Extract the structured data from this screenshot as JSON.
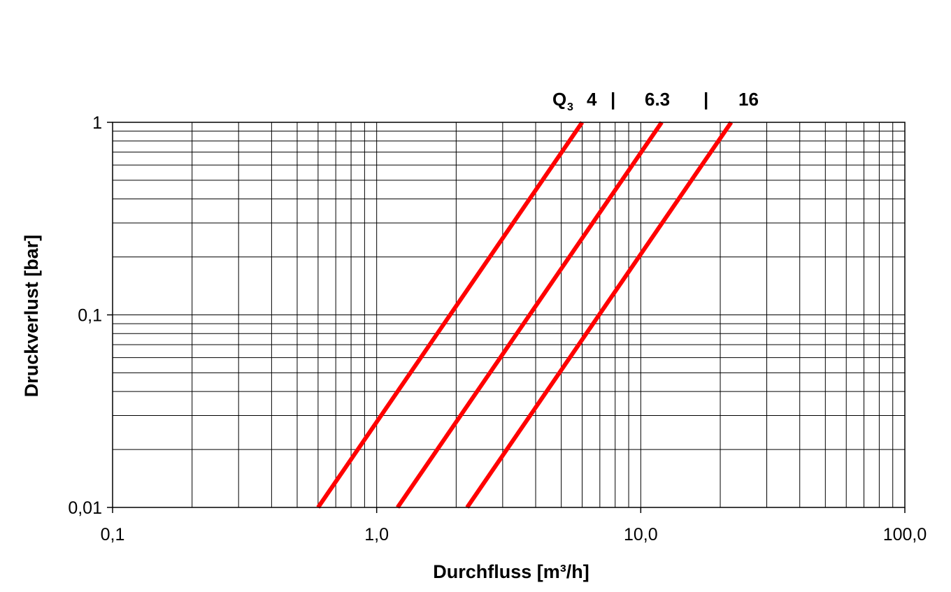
{
  "chart_data": {
    "type": "line",
    "title": "",
    "xlabel": "Durchfluss [m³/h]",
    "ylabel": "Druckverlust [bar]",
    "x_scale": "log",
    "y_scale": "log",
    "xlim": [
      0.1,
      100
    ],
    "ylim": [
      0.01,
      1
    ],
    "grid": true,
    "x_ticks": [
      0.1,
      1,
      10,
      100
    ],
    "x_tick_labels": [
      "0,1",
      "1,0",
      "10,0",
      "100,0"
    ],
    "y_ticks": [
      0.01,
      0.1,
      1
    ],
    "y_tick_labels": [
      "0,01",
      "0,1",
      "1"
    ],
    "line_color": "#ff0000",
    "legend": {
      "prefix": "Q",
      "prefix_sub": "3",
      "items": [
        "4",
        "|",
        "6.3",
        "|",
        "16"
      ]
    },
    "series": [
      {
        "name": "4",
        "x": [
          0.6,
          6.0
        ],
        "y": [
          0.01,
          1
        ]
      },
      {
        "name": "6.3",
        "x": [
          1.2,
          12.0
        ],
        "y": [
          0.01,
          1
        ]
      },
      {
        "name": "16",
        "x": [
          2.2,
          22.0
        ],
        "y": [
          0.01,
          1
        ]
      }
    ]
  }
}
